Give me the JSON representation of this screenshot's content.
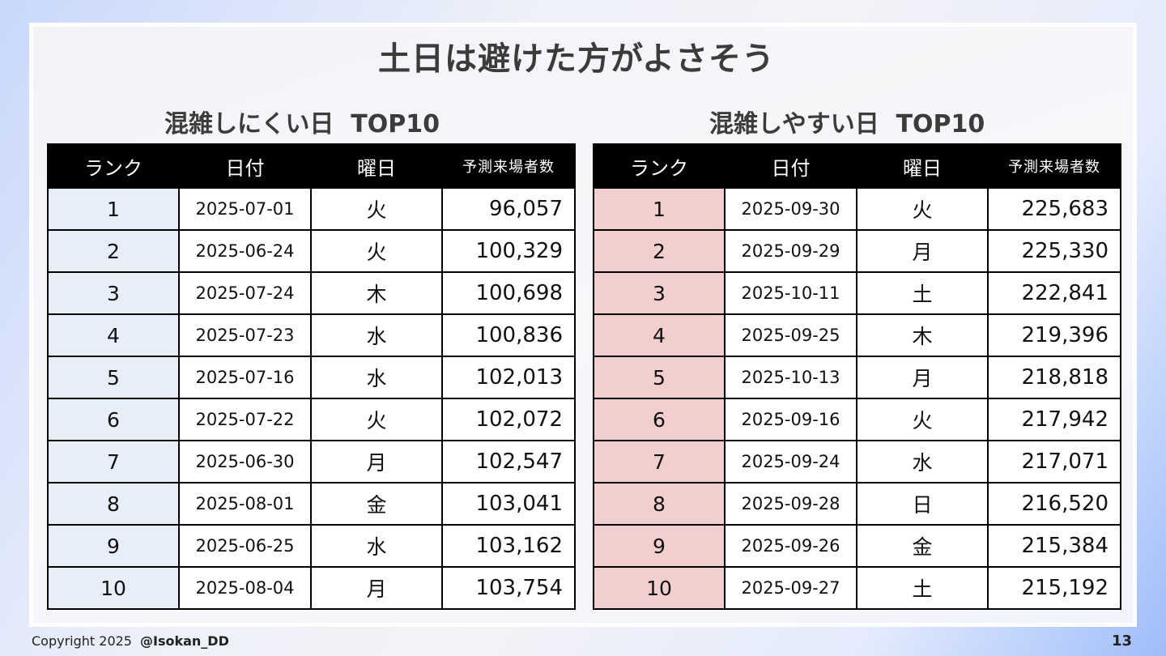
{
  "slide": {
    "title": "土日は避けた方がよさそう",
    "page_number": "13"
  },
  "footer": {
    "copyright": "Copyright 2025",
    "handle": "@Isokan_DD"
  },
  "left_table": {
    "heading": "混雑しにくい日  TOP10",
    "highlight_color": "#e6eef8",
    "columns": [
      "ランク",
      "日付",
      "曜日",
      "予測来場者数"
    ],
    "rows": [
      [
        "1",
        "2025-07-01",
        "火",
        "96,057"
      ],
      [
        "2",
        "2025-06-24",
        "火",
        "100,329"
      ],
      [
        "3",
        "2025-07-24",
        "木",
        "100,698"
      ],
      [
        "4",
        "2025-07-23",
        "水",
        "100,836"
      ],
      [
        "5",
        "2025-07-16",
        "水",
        "102,013"
      ],
      [
        "6",
        "2025-07-22",
        "火",
        "102,072"
      ],
      [
        "7",
        "2025-06-30",
        "月",
        "102,547"
      ],
      [
        "8",
        "2025-08-01",
        "金",
        "103,041"
      ],
      [
        "9",
        "2025-06-25",
        "水",
        "103,162"
      ],
      [
        "10",
        "2025-08-04",
        "月",
        "103,754"
      ]
    ]
  },
  "right_table": {
    "heading": "混雑しやすい日  TOP10",
    "highlight_color": "#f3cece",
    "columns": [
      "ランク",
      "日付",
      "曜日",
      "予測来場者数"
    ],
    "rows": [
      [
        "1",
        "2025-09-30",
        "火",
        "225,683"
      ],
      [
        "2",
        "2025-09-29",
        "月",
        "225,330"
      ],
      [
        "3",
        "2025-10-11",
        "土",
        "222,841"
      ],
      [
        "4",
        "2025-09-25",
        "木",
        "219,396"
      ],
      [
        "5",
        "2025-10-13",
        "月",
        "218,818"
      ],
      [
        "6",
        "2025-09-16",
        "火",
        "217,942"
      ],
      [
        "7",
        "2025-09-24",
        "水",
        "217,071"
      ],
      [
        "8",
        "2025-09-28",
        "日",
        "216,520"
      ],
      [
        "9",
        "2025-09-26",
        "金",
        "215,384"
      ],
      [
        "10",
        "2025-09-27",
        "土",
        "215,192"
      ]
    ]
  }
}
